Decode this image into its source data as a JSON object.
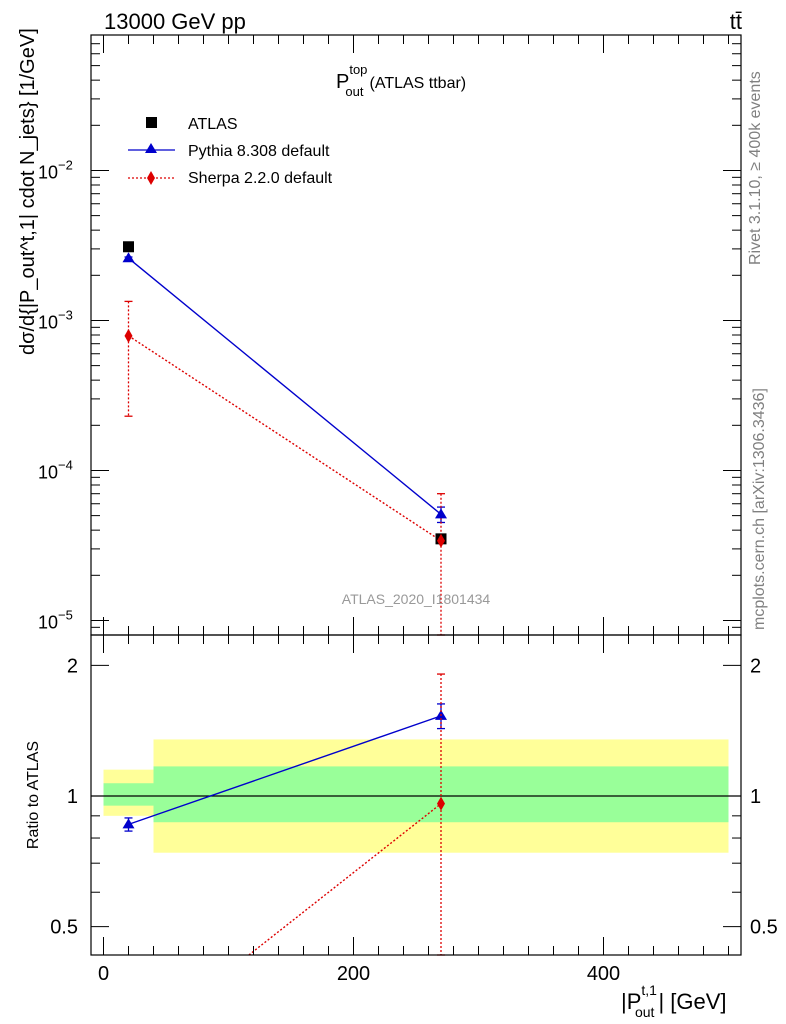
{
  "header": {
    "energy_label": "13000 GeV pp",
    "process_label": "tt̄"
  },
  "side_labels": {
    "rivet": "Rivet 3.1.10, ≥ 400k events",
    "mcplots": "mcplots.cern.ch [arXiv:1306.3436]"
  },
  "analysis_id": "ATLAS_2020_I1801434",
  "colors": {
    "atlas": "#000000",
    "pythia": "#0000cc",
    "sherpa": "#dd0000",
    "band_outer": "#ffff99",
    "band_inner": "#99ff99",
    "side_text": "#808080"
  },
  "chart_data": [
    {
      "type": "line",
      "panel": "main",
      "title": "P_out^top (ATLAS ttbar)",
      "title_main": "P",
      "title_sup": "top",
      "title_sub": "out",
      "title_rest": "(ATLAS ttbar)",
      "ylabel": "dσ/d{|P_out^t,1| cdot N_jets} [1/GeV]",
      "y_scale": "log",
      "xlim": [
        -10,
        510
      ],
      "ylim": [
        8e-06,
        0.08
      ],
      "y_ticks": [
        {
          "value": 0.01,
          "base": "10",
          "exp": "−2"
        },
        {
          "value": 0.001,
          "base": "10",
          "exp": "−3"
        },
        {
          "value": 0.0001,
          "base": "10",
          "exp": "−4"
        },
        {
          "value": 1e-05,
          "base": "10",
          "exp": "−5"
        }
      ],
      "legend_position": "top-left",
      "series": [
        {
          "name": "ATLAS",
          "marker": "square",
          "x": [
            20,
            270
          ],
          "y": [
            0.0031,
            3.5e-05
          ]
        },
        {
          "name": "Pythia 8.308 default",
          "marker": "triangle",
          "x": [
            20,
            270
          ],
          "y": [
            0.0026,
            5.1e-05
          ],
          "err_low": [
            5e-05,
            6e-06
          ],
          "err_high": [
            5e-05,
            6e-06
          ]
        },
        {
          "name": "Sherpa 2.2.0 default",
          "marker": "diamond",
          "x": [
            20,
            270
          ],
          "y": [
            0.00079,
            3.4e-05
          ],
          "err_low": [
            0.00056,
            3.4e-05
          ],
          "err_high": [
            0.00055,
            3.6e-05
          ]
        }
      ]
    },
    {
      "type": "line",
      "panel": "ratio",
      "ylabel": "Ratio to ATLAS",
      "xlabel": "|P_out^t,1| [GeV]",
      "xlabel_main": "|P",
      "xlabel_sup": "t,1",
      "xlabel_sub": "out",
      "xlabel_rest": "| [GeV]",
      "y_scale": "log",
      "xlim": [
        -10,
        510
      ],
      "ylim": [
        0.43,
        2.35
      ],
      "x_ticks": [
        0,
        200,
        400
      ],
      "y_ticks": [
        0.5,
        1,
        2
      ],
      "reference_line": 1,
      "bands": [
        {
          "x0": 0,
          "x1": 40,
          "outer": [
            0.9,
            1.15
          ],
          "inner": [
            0.95,
            1.07
          ]
        },
        {
          "x0": 40,
          "x1": 500,
          "outer": [
            0.74,
            1.35
          ],
          "inner": [
            0.87,
            1.17
          ]
        }
      ],
      "series": [
        {
          "name": "Pythia 8.308 default",
          "marker": "triangle",
          "x": [
            20,
            270
          ],
          "y": [
            0.86,
            1.53
          ],
          "err_low": [
            0.03,
            0.1
          ],
          "err_high": [
            0.03,
            0.1
          ]
        },
        {
          "name": "Sherpa 2.2.0 default",
          "marker": "diamond",
          "x": [
            20,
            270
          ],
          "y": [
            0.26,
            0.96
          ],
          "err_low": [
            0.2,
            0.96
          ],
          "err_high": [
            0.2,
            0.95
          ]
        }
      ]
    }
  ]
}
